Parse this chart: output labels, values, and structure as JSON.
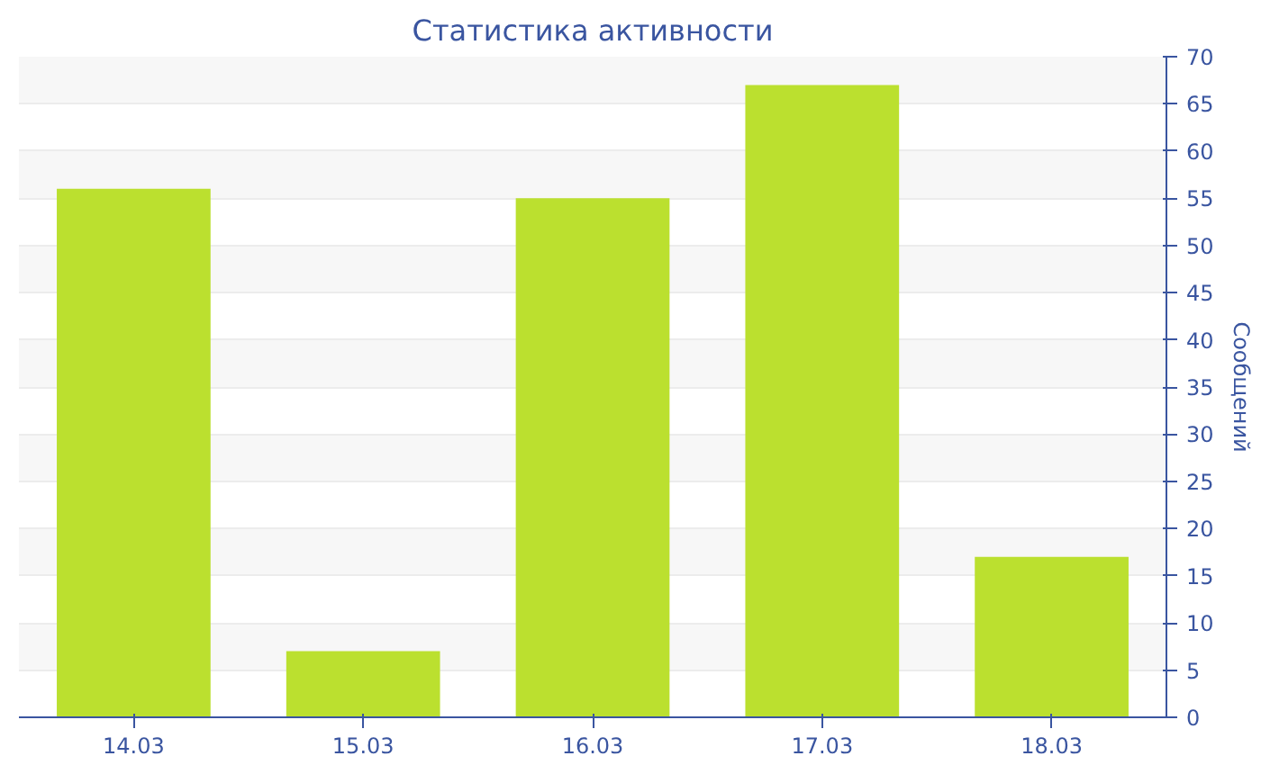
{
  "chart_data": {
    "type": "bar",
    "title": "Статистика активности",
    "ylabel": "Сообщений",
    "categories": [
      "14.03",
      "15.03",
      "16.03",
      "17.03",
      "18.03"
    ],
    "values": [
      56,
      7,
      55,
      67,
      17
    ],
    "color": "#bbe02f",
    "ylim": [
      0,
      70
    ],
    "yticks": [
      0,
      5,
      10,
      15,
      20,
      25,
      30,
      35,
      40,
      45,
      50,
      55,
      60,
      65,
      70
    ],
    "grid": "y"
  }
}
